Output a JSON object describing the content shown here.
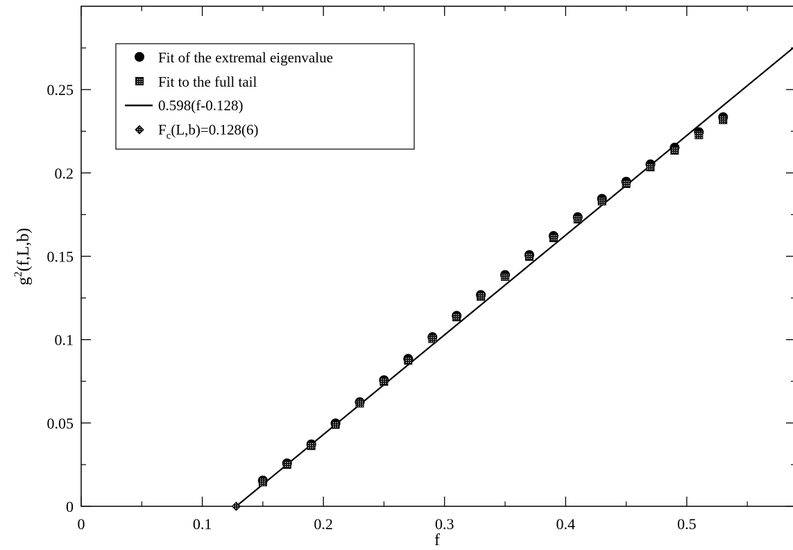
{
  "chart_data": {
    "type": "scatter",
    "xlabel": "f",
    "ylabel": "g",
    "ylabel_sup": "2",
    "ylabel_rest": "(f,L,b)",
    "xlim": [
      0,
      0.59
    ],
    "ylim": [
      0,
      0.3
    ],
    "x_ticks": [
      {
        "value": 0,
        "label": "0"
      },
      {
        "value": 0.1,
        "label": "0.1"
      },
      {
        "value": 0.2,
        "label": "0.2"
      },
      {
        "value": 0.3,
        "label": "0.3"
      },
      {
        "value": 0.4,
        "label": "0.4"
      },
      {
        "value": 0.5,
        "label": "0.5"
      }
    ],
    "y_ticks": [
      {
        "value": 0,
        "label": "0"
      },
      {
        "value": 0.05,
        "label": "0.05"
      },
      {
        "value": 0.1,
        "label": "0.1"
      },
      {
        "value": 0.15,
        "label": "0.15"
      },
      {
        "value": 0.2,
        "label": "0.2"
      },
      {
        "value": 0.25,
        "label": "0.25"
      }
    ],
    "grid": false,
    "legend_position": "top-left",
    "series": [
      {
        "name": "Fit of the extremal eigenvalue",
        "marker": "circle",
        "x": [
          0.15,
          0.17,
          0.19,
          0.21,
          0.23,
          0.25,
          0.27,
          0.29,
          0.31,
          0.33,
          0.35,
          0.37,
          0.39,
          0.41,
          0.43,
          0.45,
          0.47,
          0.49,
          0.51,
          0.53
        ],
        "y": [
          0.0155,
          0.0258,
          0.0372,
          0.0498,
          0.0625,
          0.0757,
          0.0885,
          0.1015,
          0.1143,
          0.1268,
          0.1388,
          0.1508,
          0.1622,
          0.1735,
          0.1845,
          0.1948,
          0.2052,
          0.2152,
          0.2245,
          0.2335
        ]
      },
      {
        "name": "Fit to the full tail",
        "marker": "square",
        "x": [
          0.15,
          0.17,
          0.19,
          0.21,
          0.23,
          0.25,
          0.27,
          0.29,
          0.31,
          0.33,
          0.35,
          0.37,
          0.39,
          0.41,
          0.43,
          0.45,
          0.47,
          0.49,
          0.51,
          0.53
        ],
        "y": [
          0.0145,
          0.025,
          0.0363,
          0.049,
          0.0618,
          0.0748,
          0.0875,
          0.1005,
          0.1135,
          0.1258,
          0.1378,
          0.1498,
          0.161,
          0.1722,
          0.183,
          0.1935,
          0.2035,
          0.2135,
          0.2228,
          0.2318
        ]
      },
      {
        "name": "0.598(f-0.128)",
        "type": "line",
        "slope": 0.598,
        "intercept_x": 0.128
      },
      {
        "name": "F",
        "name_sub": "c",
        "name_rest": "(L,b)=0.128(6)",
        "marker": "diamond",
        "x": [
          0.128
        ],
        "y": [
          0
        ]
      }
    ]
  }
}
